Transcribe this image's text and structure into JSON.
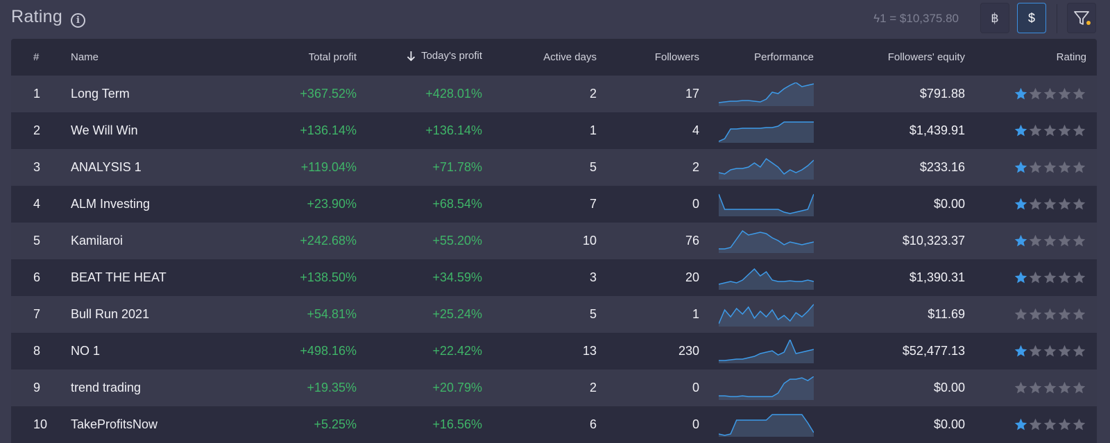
{
  "header": {
    "title": "Rating",
    "rate": "ϟ1 = $10,375.80",
    "btc_label": "฿",
    "usd_label": "$"
  },
  "columns": {
    "num": "#",
    "name": "Name",
    "total": "Total profit",
    "today": "Today's profit",
    "days": "Active days",
    "followers": "Followers",
    "performance": "Performance",
    "equity": "Followers' equity",
    "rating": "Rating"
  },
  "colors": {
    "accent": "#3d8fe0",
    "profit": "#3fb568",
    "star_active": "#3d9be9",
    "star_inactive": "#6b6c7c"
  },
  "rows": [
    {
      "num": "1",
      "name": "Long Term",
      "total": "+367.52%",
      "today": "+428.01%",
      "days": "2",
      "followers": "17",
      "equity": "$791.88",
      "stars": 1,
      "perf": [
        5,
        6,
        7,
        7,
        8,
        8,
        7,
        6,
        10,
        20,
        18,
        25,
        30,
        34,
        28,
        30,
        32
      ]
    },
    {
      "num": "2",
      "name": "We Will Win",
      "total": "+136.14%",
      "today": "+136.14%",
      "days": "1",
      "followers": "4",
      "equity": "$1,439.91",
      "stars": 1,
      "perf": [
        2,
        6,
        20,
        20,
        21,
        21,
        21,
        21,
        22,
        22,
        24,
        30,
        30,
        30,
        30,
        30,
        30
      ]
    },
    {
      "num": "3",
      "name": "ANALYSIS 1",
      "total": "+119.04%",
      "today": "+71.78%",
      "days": "5",
      "followers": "2",
      "equity": "$233.16",
      "stars": 1,
      "perf": [
        10,
        8,
        14,
        16,
        16,
        18,
        24,
        18,
        30,
        24,
        18,
        8,
        14,
        10,
        14,
        20,
        28
      ]
    },
    {
      "num": "4",
      "name": "ALM Investing",
      "total": "+23.90%",
      "today": "+68.54%",
      "days": "7",
      "followers": "0",
      "equity": "$0.00",
      "stars": 1,
      "perf": [
        32,
        10,
        10,
        10,
        10,
        10,
        10,
        10,
        10,
        10,
        10,
        6,
        4,
        6,
        8,
        10,
        32
      ]
    },
    {
      "num": "5",
      "name": "Kamilaroi",
      "total": "+242.68%",
      "today": "+55.20%",
      "days": "10",
      "followers": "76",
      "equity": "$10,323.37",
      "stars": 1,
      "perf": [
        6,
        6,
        8,
        20,
        32,
        26,
        28,
        30,
        28,
        22,
        18,
        12,
        16,
        14,
        12,
        14,
        16
      ]
    },
    {
      "num": "6",
      "name": "BEAT THE HEAT",
      "total": "+138.50%",
      "today": "+34.59%",
      "days": "3",
      "followers": "20",
      "equity": "$1,390.31",
      "stars": 1,
      "perf": [
        8,
        10,
        12,
        10,
        14,
        22,
        30,
        20,
        26,
        14,
        12,
        12,
        13,
        12,
        12,
        14,
        12
      ]
    },
    {
      "num": "7",
      "name": "Bull Run 2021",
      "total": "+54.81%",
      "today": "+25.24%",
      "days": "5",
      "followers": "1",
      "equity": "$11.69",
      "stars": 0,
      "perf": [
        4,
        24,
        14,
        26,
        18,
        28,
        12,
        22,
        14,
        24,
        10,
        16,
        8,
        20,
        14,
        22,
        32
      ]
    },
    {
      "num": "8",
      "name": "NO 1",
      "total": "+498.16%",
      "today": "+22.42%",
      "days": "13",
      "followers": "230",
      "equity": "$52,477.13",
      "stars": 1,
      "perf": [
        4,
        4,
        5,
        6,
        6,
        8,
        10,
        14,
        16,
        18,
        12,
        16,
        34,
        14,
        16,
        18,
        20
      ]
    },
    {
      "num": "9",
      "name": "trend trading",
      "total": "+19.35%",
      "today": "+20.79%",
      "days": "2",
      "followers": "0",
      "equity": "$0.00",
      "stars": 0,
      "perf": [
        6,
        6,
        5,
        5,
        6,
        5,
        5,
        5,
        5,
        5,
        10,
        24,
        30,
        30,
        32,
        28,
        34
      ]
    },
    {
      "num": "10",
      "name": "TakeProfitsNow",
      "total": "+5.25%",
      "today": "+16.56%",
      "days": "6",
      "followers": "0",
      "equity": "$0.00",
      "stars": 1,
      "perf": [
        4,
        2,
        4,
        24,
        24,
        24,
        24,
        24,
        24,
        32,
        32,
        32,
        32,
        32,
        32,
        20,
        6
      ]
    }
  ]
}
